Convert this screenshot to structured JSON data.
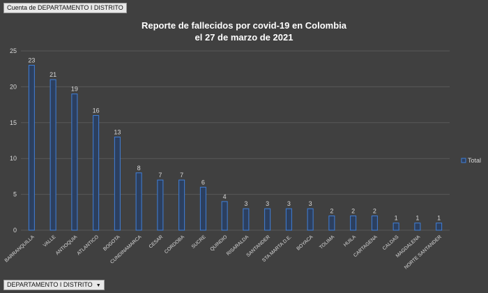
{
  "pivot": {
    "value_field": "Cuenta de DEPARTAMENTO I DISTRITO",
    "axis_field": "DEPARTAMENTO I DISTRITO"
  },
  "colors": {
    "bar_stroke": "#3f7fd9",
    "bar_fill": "#2c3f5e",
    "grid": "#585858",
    "background": "#404040"
  },
  "chart_data": {
    "type": "bar",
    "title": "Reporte de fallecidos por covid-19 en Colombia",
    "subtitle": "el 27 de marzo de 2021",
    "xlabel": "",
    "ylabel": "",
    "ylim": [
      0,
      25
    ],
    "yticks": [
      0,
      5,
      10,
      15,
      20,
      25
    ],
    "grid": true,
    "legend": "right",
    "categories": [
      "BARRANQUILLA",
      "VALLE",
      "ANTIOQUIA",
      "ATLANTICO",
      "BOGOTA",
      "CUNDINAMARCA",
      "CESAR",
      "CORDOBA",
      "SUCRE",
      "QUINDIO",
      "RISARALDA",
      "SANTANDER",
      "STA MARTA D.E.",
      "BOYACA",
      "TOLIMA",
      "HUILA",
      "CARTAGENA",
      "CALDAS",
      "MAGDALENA",
      "NORTE SANTANDER"
    ],
    "series": [
      {
        "name": "Total",
        "values": [
          23,
          21,
          19,
          16,
          13,
          8,
          7,
          7,
          6,
          4,
          3,
          3,
          3,
          3,
          2,
          2,
          2,
          1,
          1,
          1
        ]
      }
    ]
  }
}
